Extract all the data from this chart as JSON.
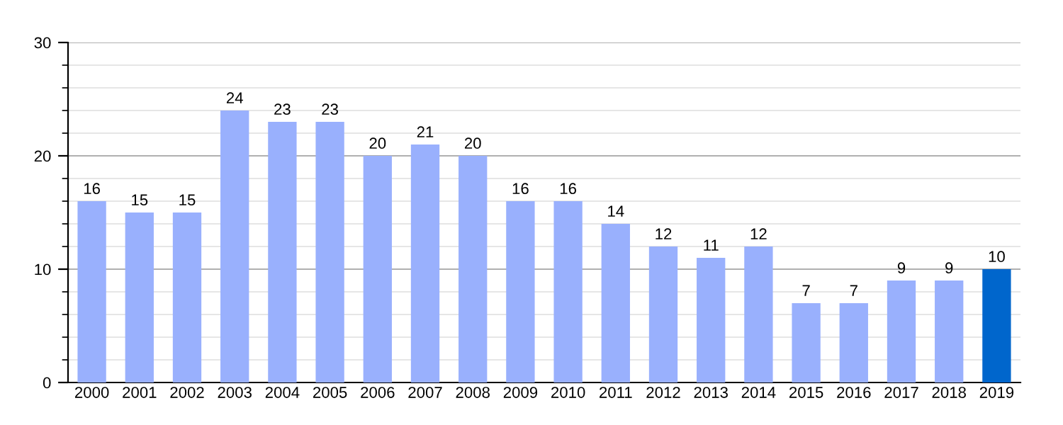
{
  "chart_data": {
    "type": "bar",
    "categories": [
      "2000",
      "2001",
      "2002",
      "2003",
      "2004",
      "2005",
      "2006",
      "2007",
      "2008",
      "2009",
      "2010",
      "2011",
      "2012",
      "2013",
      "2014",
      "2015",
      "2016",
      "2017",
      "2018",
      "2019"
    ],
    "values": [
      16,
      15,
      15,
      24,
      23,
      23,
      20,
      21,
      20,
      16,
      16,
      14,
      12,
      11,
      12,
      7,
      7,
      9,
      9,
      10
    ],
    "colors": [
      "#99b0fd",
      "#99b0fd",
      "#99b0fd",
      "#99b0fd",
      "#99b0fd",
      "#99b0fd",
      "#99b0fd",
      "#99b0fd",
      "#99b0fd",
      "#99b0fd",
      "#99b0fd",
      "#99b0fd",
      "#99b0fd",
      "#99b0fd",
      "#99b0fd",
      "#99b0fd",
      "#99b0fd",
      "#99b0fd",
      "#99b0fd",
      "#0066cc"
    ],
    "ylim": [
      0,
      30
    ],
    "yticks": [
      0,
      10,
      20,
      30
    ],
    "grid": "y",
    "data_labels": true
  }
}
